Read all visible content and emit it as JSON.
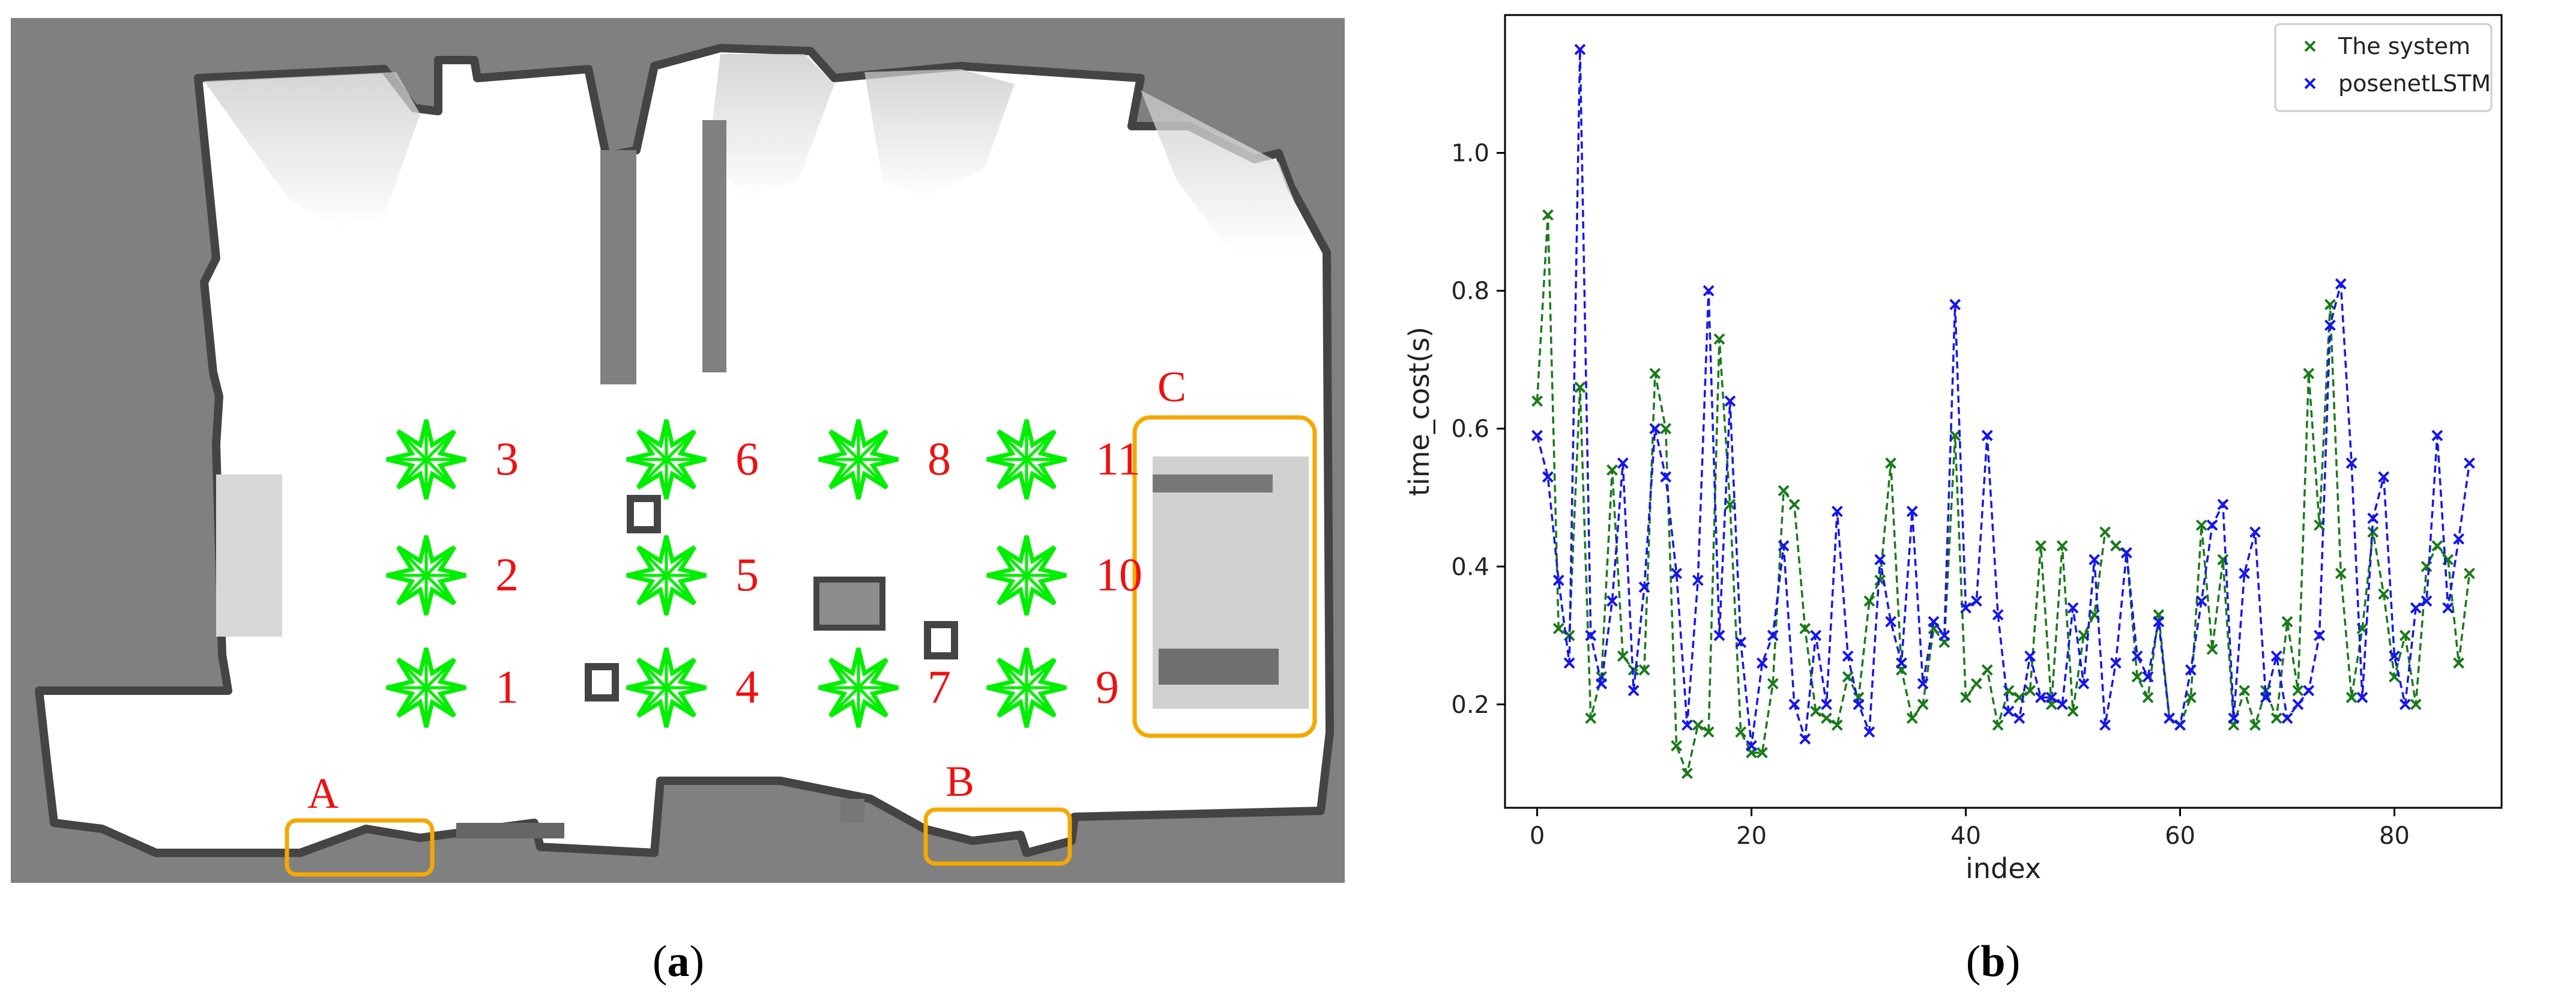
{
  "panel_a": {
    "caption_open": "(",
    "caption_letter": "a",
    "caption_close": ")",
    "region_labels": [
      "A",
      "B",
      "C"
    ],
    "region_color": "#F5A800",
    "point_color": "#00EE00",
    "label_color": "#EE1111",
    "points": [
      {
        "label": "1",
        "row": 3,
        "col": 1
      },
      {
        "label": "2",
        "row": 2,
        "col": 1
      },
      {
        "label": "3",
        "row": 1,
        "col": 1
      },
      {
        "label": "4",
        "row": 3,
        "col": 2
      },
      {
        "label": "5",
        "row": 2,
        "col": 2
      },
      {
        "label": "6",
        "row": 1,
        "col": 2
      },
      {
        "label": "7",
        "row": 3,
        "col": 3
      },
      {
        "label": "8",
        "row": 1,
        "col": 3
      },
      {
        "label": "9",
        "row": 3,
        "col": 4
      },
      {
        "label": "10",
        "row": 2,
        "col": 4
      },
      {
        "label": "11",
        "row": 1,
        "col": 4
      }
    ]
  },
  "panel_b": {
    "caption_open": "(",
    "caption_letter": "b",
    "caption_close": ")"
  },
  "chart_data": {
    "type": "line",
    "xlabel": "index",
    "ylabel": "time_cost(s)",
    "xlim": [
      -3,
      90
    ],
    "ylim": [
      0.05,
      1.2
    ],
    "xticks": [
      0,
      20,
      40,
      60,
      80
    ],
    "yticks": [
      0.2,
      0.4,
      0.6,
      0.8,
      1.0
    ],
    "ytick_labels": [
      "0.2",
      "0.4",
      "0.6",
      "0.8",
      "1.0"
    ],
    "grid": false,
    "legend_position": "top-right",
    "marker": "x",
    "line_style": "dashed",
    "series": [
      {
        "name": "The system",
        "color": "#1a7a1a",
        "values": [
          0.64,
          0.91,
          0.31,
          0.3,
          0.66,
          0.18,
          0.24,
          0.54,
          0.27,
          0.25,
          0.25,
          0.68,
          0.6,
          0.14,
          0.1,
          0.17,
          0.16,
          0.73,
          0.49,
          0.16,
          0.13,
          0.13,
          0.23,
          0.51,
          0.49,
          0.31,
          0.19,
          0.18,
          0.17,
          0.24,
          0.21,
          0.35,
          0.38,
          0.55,
          0.25,
          0.18,
          0.2,
          0.31,
          0.29,
          0.59,
          0.21,
          0.23,
          0.25,
          0.17,
          0.22,
          0.21,
          0.22,
          0.43,
          0.2,
          0.43,
          0.19,
          0.3,
          0.33,
          0.45,
          0.43,
          0.42,
          0.24,
          0.21,
          0.33,
          0.18,
          0.17,
          0.21,
          0.46,
          0.28,
          0.41,
          0.17,
          0.22,
          0.17,
          0.22,
          0.18,
          0.32,
          0.22,
          0.68,
          0.46,
          0.78,
          0.39,
          0.21,
          0.31,
          0.45,
          0.36,
          0.24,
          0.3,
          0.2,
          0.4,
          0.43,
          0.41,
          0.26,
          0.39
        ]
      },
      {
        "name": "posenetLSTM",
        "color": "#1515ee",
        "values": [
          0.59,
          0.53,
          0.38,
          0.26,
          1.15,
          0.3,
          0.23,
          0.35,
          0.55,
          0.22,
          0.37,
          0.6,
          0.53,
          0.39,
          0.17,
          0.38,
          0.8,
          0.3,
          0.64,
          0.29,
          0.14,
          0.26,
          0.3,
          0.43,
          0.2,
          0.15,
          0.3,
          0.2,
          0.48,
          0.27,
          0.2,
          0.16,
          0.41,
          0.32,
          0.26,
          0.48,
          0.23,
          0.32,
          0.3,
          0.78,
          0.34,
          0.35,
          0.59,
          0.33,
          0.19,
          0.18,
          0.27,
          0.21,
          0.21,
          0.2,
          0.34,
          0.23,
          0.41,
          0.17,
          0.26,
          0.42,
          0.27,
          0.24,
          0.32,
          0.18,
          0.17,
          0.25,
          0.35,
          0.46,
          0.49,
          0.18,
          0.39,
          0.45,
          0.21,
          0.27,
          0.18,
          0.2,
          0.22,
          0.3,
          0.75,
          0.81,
          0.55,
          0.21,
          0.47,
          0.53,
          0.27,
          0.2,
          0.34,
          0.35,
          0.59,
          0.34,
          0.44,
          0.55
        ]
      }
    ]
  }
}
